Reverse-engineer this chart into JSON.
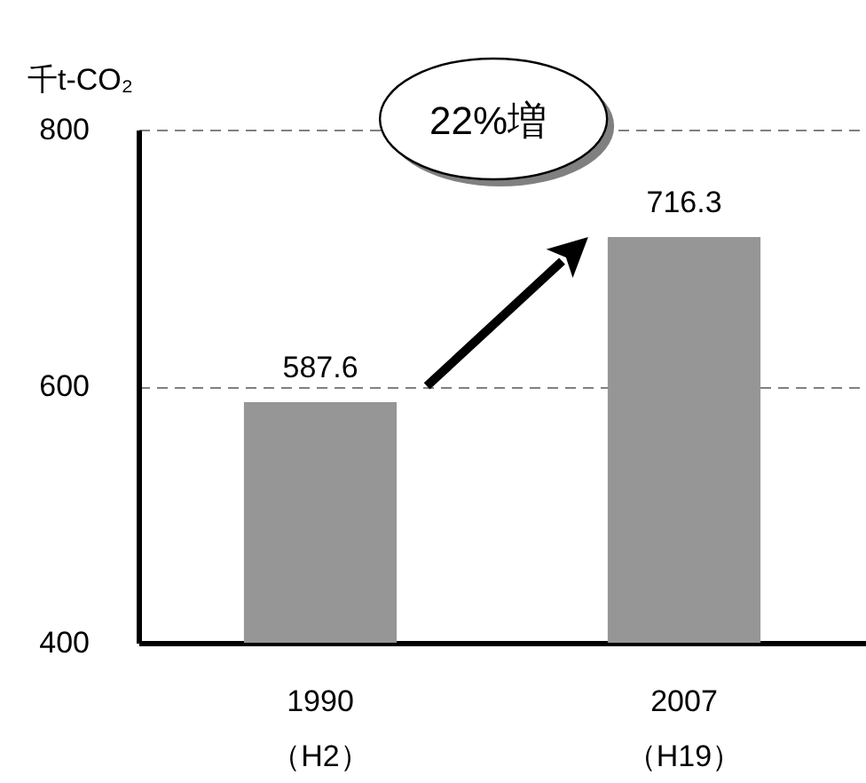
{
  "chart_data": {
    "type": "bar",
    "categories": [
      "1990\n（H2）",
      "2007\n（H19）"
    ],
    "values": [
      587.6,
      716.3
    ],
    "color": "#969696",
    "ylabel": "千t-CO₂",
    "ylim": [
      400,
      800
    ],
    "yticks": [
      400,
      600,
      800
    ],
    "grid": "y",
    "data_labels": true,
    "annotations": [
      "22%増"
    ]
  }
}
